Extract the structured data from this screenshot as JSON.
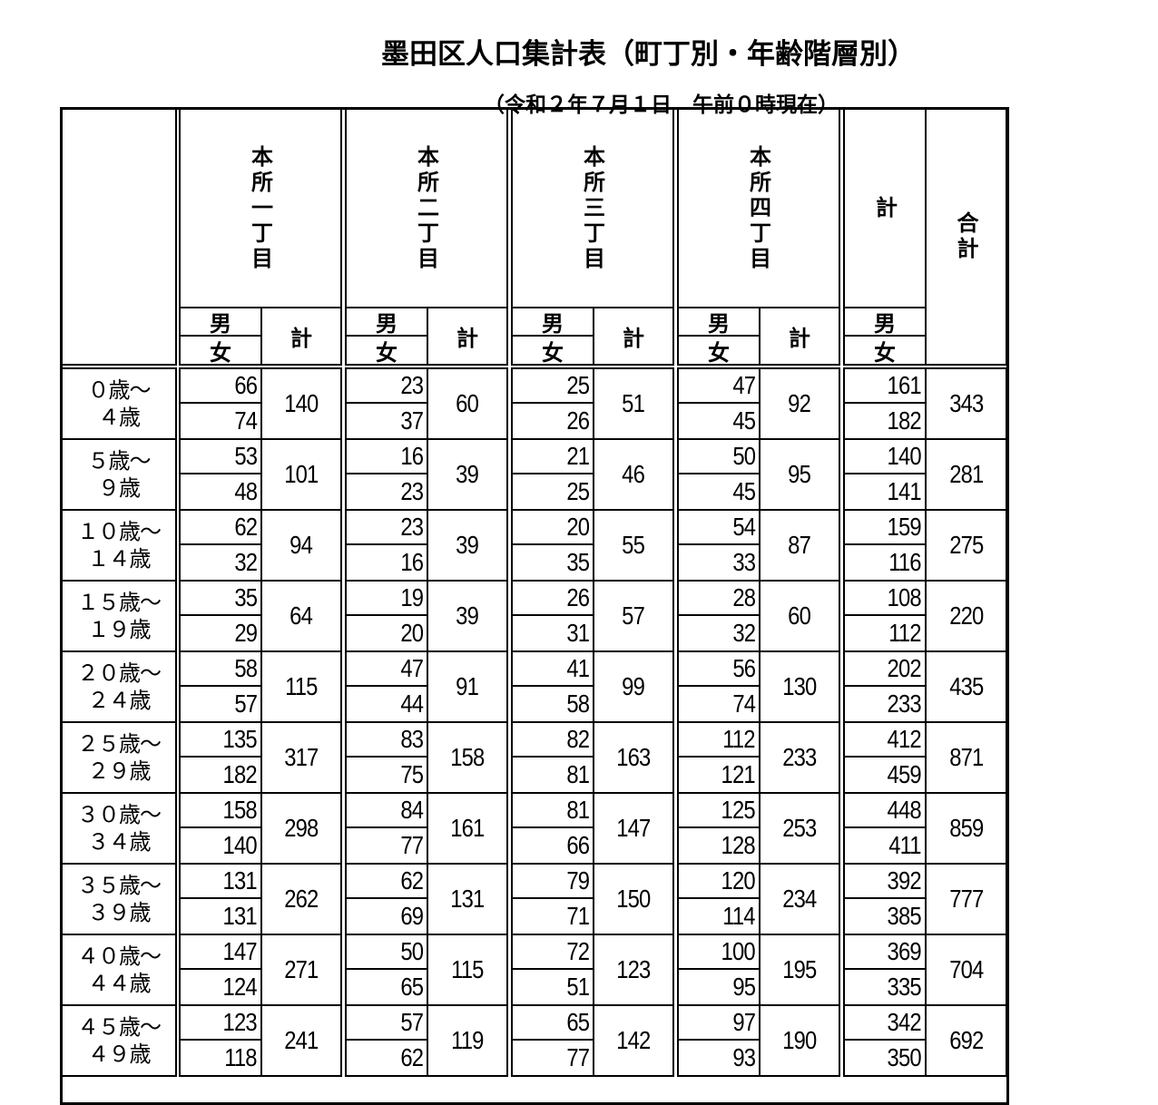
{
  "title": "墨田区人口集計表（町丁別・年齢階層別）",
  "subtitle": "（令和２年７月１日　午前０時現在）",
  "header": {
    "groups": [
      "本所一丁目",
      "本所二丁目",
      "本所三丁目",
      "本所四丁目"
    ],
    "sum_label": "計",
    "grand_label": "合計",
    "male": "男",
    "female": "女",
    "total": "計"
  },
  "rows": [
    {
      "age1": "０歳～",
      "age2": "４歳",
      "g": [
        [
          "66",
          "74",
          "140"
        ],
        [
          "23",
          "37",
          "60"
        ],
        [
          "25",
          "26",
          "51"
        ],
        [
          "47",
          "45",
          "92"
        ]
      ],
      "sum": [
        "161",
        "182"
      ],
      "grand": "343"
    },
    {
      "age1": "５歳～",
      "age2": "９歳",
      "g": [
        [
          "53",
          "48",
          "101"
        ],
        [
          "16",
          "23",
          "39"
        ],
        [
          "21",
          "25",
          "46"
        ],
        [
          "50",
          "45",
          "95"
        ]
      ],
      "sum": [
        "140",
        "141"
      ],
      "grand": "281"
    },
    {
      "age1": "１０歳～",
      "age2": "１４歳",
      "g": [
        [
          "62",
          "32",
          "94"
        ],
        [
          "23",
          "16",
          "39"
        ],
        [
          "20",
          "35",
          "55"
        ],
        [
          "54",
          "33",
          "87"
        ]
      ],
      "sum": [
        "159",
        "116"
      ],
      "grand": "275"
    },
    {
      "age1": "１５歳～",
      "age2": "１９歳",
      "g": [
        [
          "35",
          "29",
          "64"
        ],
        [
          "19",
          "20",
          "39"
        ],
        [
          "26",
          "31",
          "57"
        ],
        [
          "28",
          "32",
          "60"
        ]
      ],
      "sum": [
        "108",
        "112"
      ],
      "grand": "220"
    },
    {
      "age1": "２０歳～",
      "age2": "２４歳",
      "g": [
        [
          "58",
          "57",
          "115"
        ],
        [
          "47",
          "44",
          "91"
        ],
        [
          "41",
          "58",
          "99"
        ],
        [
          "56",
          "74",
          "130"
        ]
      ],
      "sum": [
        "202",
        "233"
      ],
      "grand": "435"
    },
    {
      "age1": "２５歳～",
      "age2": "２９歳",
      "g": [
        [
          "135",
          "182",
          "317"
        ],
        [
          "83",
          "75",
          "158"
        ],
        [
          "82",
          "81",
          "163"
        ],
        [
          "112",
          "121",
          "233"
        ]
      ],
      "sum": [
        "412",
        "459"
      ],
      "grand": "871"
    },
    {
      "age1": "３０歳～",
      "age2": "３４歳",
      "g": [
        [
          "158",
          "140",
          "298"
        ],
        [
          "84",
          "77",
          "161"
        ],
        [
          "81",
          "66",
          "147"
        ],
        [
          "125",
          "128",
          "253"
        ]
      ],
      "sum": [
        "448",
        "411"
      ],
      "grand": "859"
    },
    {
      "age1": "３５歳～",
      "age2": "３９歳",
      "g": [
        [
          "131",
          "131",
          "262"
        ],
        [
          "62",
          "69",
          "131"
        ],
        [
          "79",
          "71",
          "150"
        ],
        [
          "120",
          "114",
          "234"
        ]
      ],
      "sum": [
        "392",
        "385"
      ],
      "grand": "777"
    },
    {
      "age1": "４０歳～",
      "age2": "４４歳",
      "g": [
        [
          "147",
          "124",
          "271"
        ],
        [
          "50",
          "65",
          "115"
        ],
        [
          "72",
          "51",
          "123"
        ],
        [
          "100",
          "95",
          "195"
        ]
      ],
      "sum": [
        "369",
        "335"
      ],
      "grand": "704"
    },
    {
      "age1": "４５歳～",
      "age2": "４９歳",
      "g": [
        [
          "123",
          "118",
          "241"
        ],
        [
          "57",
          "62",
          "119"
        ],
        [
          "65",
          "77",
          "142"
        ],
        [
          "97",
          "93",
          "190"
        ]
      ],
      "sum": [
        "342",
        "350"
      ],
      "grand": "692"
    }
  ]
}
